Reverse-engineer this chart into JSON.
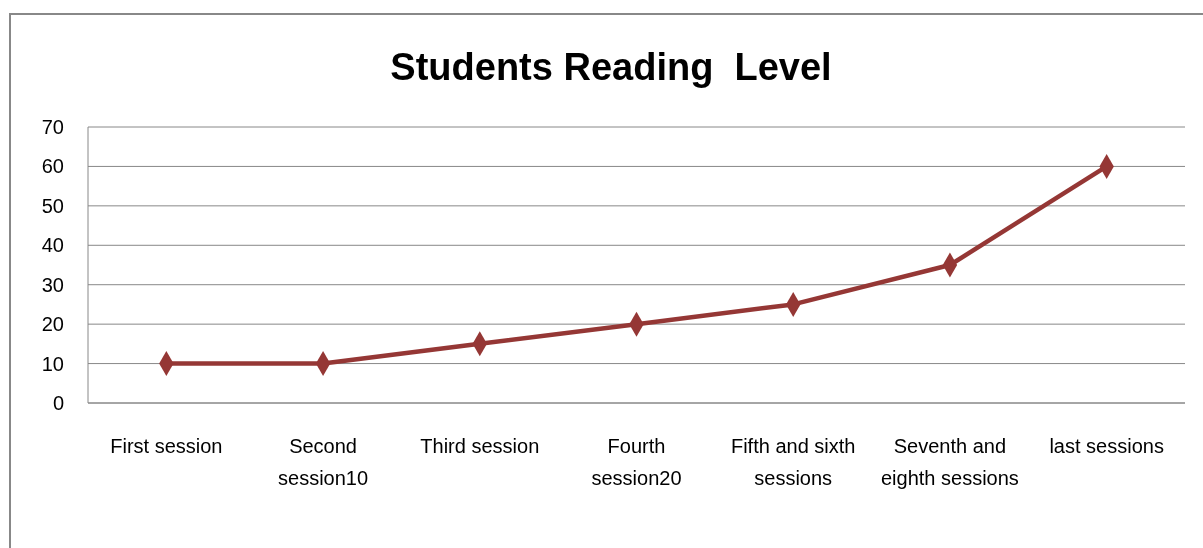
{
  "chart_data": {
    "type": "line",
    "title": "Students Reading  Level",
    "categories": [
      "First session",
      "Second session10",
      "Third session",
      "Fourth session20",
      "Fifth and sixth sessions",
      "Seventh and eighth sessions",
      "last sessions"
    ],
    "series": [
      {
        "color": "#953735",
        "values": [
          10,
          10,
          15,
          20,
          25,
          35,
          60
        ]
      }
    ],
    "ylim": [
      0,
      70
    ],
    "yticks": [
      0,
      10,
      20,
      30,
      40,
      50,
      60,
      70
    ],
    "grid": "y",
    "marker": "diamond",
    "line_style": "solid"
  }
}
